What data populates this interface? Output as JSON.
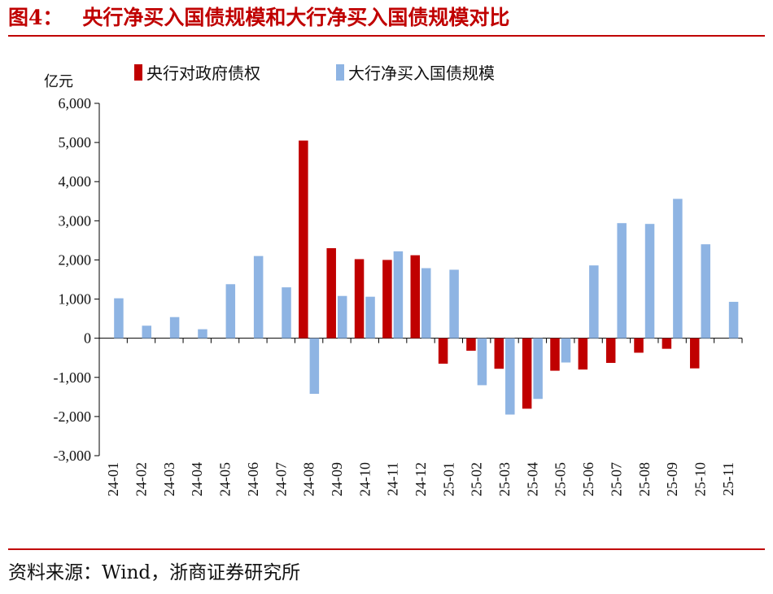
{
  "figure": {
    "label": "图4：",
    "title": "央行净买入国债规模和大行净买入国债规模对比",
    "source": "资料来源：Wind，浙商证券研究所"
  },
  "colors": {
    "accent": "#c00000",
    "series_central": "#c00000",
    "series_banks": "#8eb4e3"
  },
  "chart_data": {
    "type": "bar",
    "ylabel": "亿元",
    "ylim": [
      -3000,
      6000
    ],
    "yticks": [
      6000,
      5000,
      4000,
      3000,
      2000,
      1000,
      0,
      -1000,
      -2000,
      -3000
    ],
    "ytick_labels": [
      "6,000",
      "5,000",
      "4,000",
      "3,000",
      "2,000",
      "1,000",
      "0",
      "-1,000",
      "-2,000",
      "-3,000"
    ],
    "categories": [
      "24-01",
      "24-02",
      "24-03",
      "24-04",
      "24-05",
      "24-06",
      "24-07",
      "24-08",
      "24-09",
      "24-10",
      "24-11",
      "24-12",
      "25-01",
      "25-02",
      "25-03",
      "25-04",
      "25-05",
      "25-06",
      "25-07",
      "25-08",
      "25-09",
      "25-10",
      "25-11"
    ],
    "legend_position": "top",
    "grid": false,
    "series": [
      {
        "name": "央行对政府债权",
        "color": "#c00000",
        "values": [
          null,
          null,
          null,
          null,
          null,
          null,
          null,
          5050,
          2300,
          2020,
          2000,
          2120,
          -650,
          -320,
          -780,
          -1800,
          -830,
          -800,
          -630,
          -370,
          -270,
          -770,
          null
        ]
      },
      {
        "name": "大行净买入国债规模",
        "color": "#8eb4e3",
        "values": [
          1020,
          320,
          540,
          230,
          1380,
          2100,
          1300,
          -1420,
          1080,
          1060,
          2220,
          1790,
          1750,
          -1200,
          -1950,
          -1550,
          -620,
          1860,
          2940,
          2920,
          3560,
          2400,
          930
        ]
      }
    ]
  }
}
